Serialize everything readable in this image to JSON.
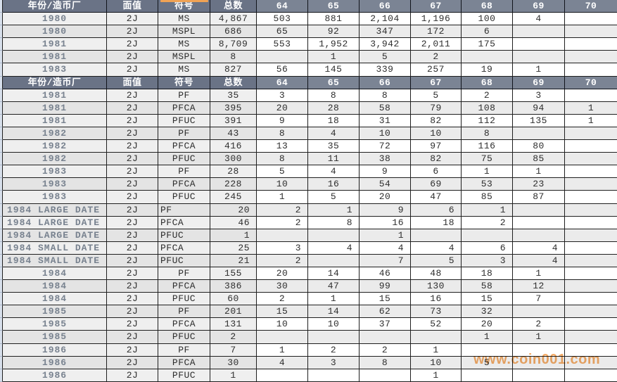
{
  "watermark": {
    "text": "www.coin001.com",
    "color": "#f6ad68"
  },
  "watermark_top_fragment": {
    "color": "#f0a255"
  },
  "table": {
    "columns": [
      "年份/造币厂",
      "面值",
      "符号",
      "总数",
      "64",
      "65",
      "66",
      "67",
      "68",
      "69",
      "70"
    ],
    "rows": [
      {
        "type": "header"
      },
      {
        "type": "data",
        "year": "1980",
        "face": "2J",
        "symbol": "MS",
        "total": "4,867",
        "values": [
          "503",
          "881",
          "2,104",
          "1,196",
          "100",
          "4",
          ""
        ]
      },
      {
        "type": "data",
        "year": "1980",
        "face": "2J",
        "symbol": "MSPL",
        "total": "686",
        "values": [
          "65",
          "92",
          "347",
          "172",
          "6",
          "",
          ""
        ]
      },
      {
        "type": "data",
        "year": "1981",
        "face": "2J",
        "symbol": "MS",
        "total": "8,709",
        "values": [
          "553",
          "1,952",
          "3,942",
          "2,011",
          "175",
          "",
          ""
        ]
      },
      {
        "type": "data",
        "year": "1981",
        "face": "2J",
        "symbol": "MSPL",
        "total": "8",
        "values": [
          "",
          "1",
          "5",
          "2",
          "",
          "",
          ""
        ]
      },
      {
        "type": "data",
        "year": "1983",
        "face": "2J",
        "symbol": "MS",
        "total": "827",
        "values": [
          "56",
          "145",
          "339",
          "257",
          "19",
          "1",
          ""
        ]
      },
      {
        "type": "header"
      },
      {
        "type": "data",
        "year": "1981",
        "face": "2J",
        "symbol": "PF",
        "total": "35",
        "values": [
          "3",
          "8",
          "8",
          "5",
          "2",
          "3",
          ""
        ]
      },
      {
        "type": "data",
        "year": "1981",
        "face": "2J",
        "symbol": "PFCA",
        "total": "395",
        "values": [
          "20",
          "28",
          "58",
          "79",
          "108",
          "94",
          "1"
        ]
      },
      {
        "type": "data",
        "year": "1981",
        "face": "2J",
        "symbol": "PFUC",
        "total": "391",
        "values": [
          "9",
          "18",
          "31",
          "82",
          "112",
          "135",
          "1"
        ]
      },
      {
        "type": "data",
        "year": "1982",
        "face": "2J",
        "symbol": "PF",
        "total": "43",
        "values": [
          "8",
          "4",
          "10",
          "10",
          "8",
          "",
          ""
        ]
      },
      {
        "type": "data",
        "year": "1982",
        "face": "2J",
        "symbol": "PFCA",
        "total": "416",
        "values": [
          "13",
          "35",
          "72",
          "97",
          "116",
          "80",
          ""
        ]
      },
      {
        "type": "data",
        "year": "1982",
        "face": "2J",
        "symbol": "PFUC",
        "total": "300",
        "values": [
          "8",
          "11",
          "38",
          "82",
          "75",
          "85",
          ""
        ]
      },
      {
        "type": "data",
        "year": "1983",
        "face": "2J",
        "symbol": "PF",
        "total": "28",
        "values": [
          "5",
          "4",
          "9",
          "6",
          "1",
          "1",
          ""
        ]
      },
      {
        "type": "data",
        "year": "1983",
        "face": "2J",
        "symbol": "PFCA",
        "total": "228",
        "values": [
          "10",
          "16",
          "54",
          "69",
          "53",
          "23",
          ""
        ]
      },
      {
        "type": "data",
        "year": "1983",
        "face": "2J",
        "symbol": "PFUC",
        "total": "245",
        "values": [
          "1",
          "5",
          "20",
          "47",
          "85",
          "87",
          ""
        ]
      },
      {
        "type": "data",
        "year": "1984 LARGE DATE",
        "face": "2J",
        "symbol": "PF",
        "total": "20",
        "values": [
          "2",
          "1",
          "9",
          "6",
          "1",
          "",
          ""
        ],
        "align": "right"
      },
      {
        "type": "data",
        "year": "1984 LARGE DATE",
        "face": "2J",
        "symbol": "PFCA",
        "total": "46",
        "values": [
          "2",
          "8",
          "16",
          "18",
          "2",
          "",
          ""
        ],
        "align": "right"
      },
      {
        "type": "data",
        "year": "1984 LARGE DATE",
        "face": "2J",
        "symbol": "PFUC",
        "total": "1",
        "values": [
          "",
          "",
          "1",
          "",
          "",
          "",
          ""
        ],
        "align": "right"
      },
      {
        "type": "data",
        "year": "1984 SMALL DATE",
        "face": "2J",
        "symbol": "PFCA",
        "total": "25",
        "values": [
          "3",
          "4",
          "4",
          "4",
          "6",
          "4",
          ""
        ],
        "align": "right"
      },
      {
        "type": "data",
        "year": "1984 SMALL DATE",
        "face": "2J",
        "symbol": "PFUC",
        "total": "21",
        "values": [
          "2",
          "",
          "7",
          "5",
          "3",
          "4",
          ""
        ],
        "align": "right"
      },
      {
        "type": "data",
        "year": "1984",
        "face": "2J",
        "symbol": "PF",
        "total": "155",
        "values": [
          "20",
          "14",
          "46",
          "48",
          "18",
          "1",
          ""
        ]
      },
      {
        "type": "data",
        "year": "1984",
        "face": "2J",
        "symbol": "PFCA",
        "total": "386",
        "values": [
          "30",
          "47",
          "99",
          "130",
          "58",
          "12",
          ""
        ]
      },
      {
        "type": "data",
        "year": "1984",
        "face": "2J",
        "symbol": "PFUC",
        "total": "60",
        "values": [
          "2",
          "1",
          "15",
          "16",
          "15",
          "7",
          ""
        ]
      },
      {
        "type": "data",
        "year": "1985",
        "face": "2J",
        "symbol": "PF",
        "total": "201",
        "values": [
          "15",
          "14",
          "62",
          "73",
          "32",
          "",
          ""
        ]
      },
      {
        "type": "data",
        "year": "1985",
        "face": "2J",
        "symbol": "PFCA",
        "total": "131",
        "values": [
          "10",
          "10",
          "37",
          "52",
          "20",
          "2",
          ""
        ]
      },
      {
        "type": "data",
        "year": "1985",
        "face": "2J",
        "symbol": "PFUC",
        "total": "2",
        "values": [
          "",
          "",
          "",
          "",
          "1",
          "1",
          ""
        ]
      },
      {
        "type": "data",
        "year": "1986",
        "face": "2J",
        "symbol": "PF",
        "total": "7",
        "values": [
          "1",
          "2",
          "2",
          "1",
          "",
          "",
          ""
        ]
      },
      {
        "type": "data",
        "year": "1986",
        "face": "2J",
        "symbol": "PFCA",
        "total": "30",
        "values": [
          "4",
          "3",
          "8",
          "10",
          "5",
          "",
          ""
        ]
      },
      {
        "type": "data",
        "year": "1986",
        "face": "2J",
        "symbol": "PFUC",
        "total": "1",
        "values": [
          "",
          "",
          "",
          "1",
          "",
          "",
          ""
        ]
      }
    ]
  }
}
